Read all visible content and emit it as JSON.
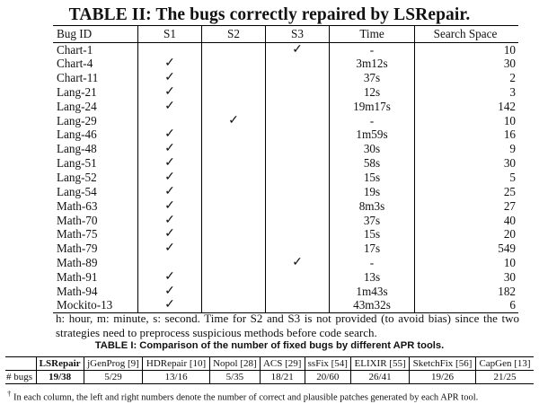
{
  "table2": {
    "caption": "TABLE II: The bugs correctly repaired by LSRepair.",
    "headers": [
      "Bug ID",
      "S1",
      "S2",
      "S3",
      "Time",
      "Search Space"
    ],
    "rows": [
      {
        "id": "Chart-1",
        "s1": "",
        "s2": "",
        "s3": "✓",
        "time": "-",
        "space": "10"
      },
      {
        "id": "Chart-4",
        "s1": "✓",
        "s2": "",
        "s3": "",
        "time": "3m12s",
        "space": "30"
      },
      {
        "id": "Chart-11",
        "s1": "✓",
        "s2": "",
        "s3": "",
        "time": "37s",
        "space": "2"
      },
      {
        "id": "Lang-21",
        "s1": "✓",
        "s2": "",
        "s3": "",
        "time": "12s",
        "space": "3"
      },
      {
        "id": "Lang-24",
        "s1": "✓",
        "s2": "",
        "s3": "",
        "time": "19m17s",
        "space": "142"
      },
      {
        "id": "Lang-29",
        "s1": "",
        "s2": "✓",
        "s3": "",
        "time": "-",
        "space": "10"
      },
      {
        "id": "Lang-46",
        "s1": "✓",
        "s2": "",
        "s3": "",
        "time": "1m59s",
        "space": "16"
      },
      {
        "id": "Lang-48",
        "s1": "✓",
        "s2": "",
        "s3": "",
        "time": "30s",
        "space": "9"
      },
      {
        "id": "Lang-51",
        "s1": "✓",
        "s2": "",
        "s3": "",
        "time": "58s",
        "space": "30"
      },
      {
        "id": "Lang-52",
        "s1": "✓",
        "s2": "",
        "s3": "",
        "time": "15s",
        "space": "5"
      },
      {
        "id": "Lang-54",
        "s1": "✓",
        "s2": "",
        "s3": "",
        "time": "19s",
        "space": "25"
      },
      {
        "id": "Math-63",
        "s1": "✓",
        "s2": "",
        "s3": "",
        "time": "8m3s",
        "space": "27"
      },
      {
        "id": "Math-70",
        "s1": "✓",
        "s2": "",
        "s3": "",
        "time": "37s",
        "space": "40"
      },
      {
        "id": "Math-75",
        "s1": "✓",
        "s2": "",
        "s3": "",
        "time": "15s",
        "space": "20"
      },
      {
        "id": "Math-79",
        "s1": "✓",
        "s2": "",
        "s3": "",
        "time": "17s",
        "space": "549"
      },
      {
        "id": "Math-89",
        "s1": "",
        "s2": "",
        "s3": "✓",
        "time": "-",
        "space": "10"
      },
      {
        "id": "Math-91",
        "s1": "✓",
        "s2": "",
        "s3": "",
        "time": "13s",
        "space": "30"
      },
      {
        "id": "Math-94",
        "s1": "✓",
        "s2": "",
        "s3": "",
        "time": "1m43s",
        "space": "182"
      },
      {
        "id": "Mockito-13",
        "s1": "✓",
        "s2": "",
        "s3": "",
        "time": "43m32s",
        "space": "6"
      }
    ]
  },
  "note": "h: hour, m: minute, s: second. Time for S2 and S3 is not provided (to avoid bias) since the two strategies need to preprocess suspicious methods before code search.",
  "table1": {
    "caption": "TABLE I: Comparison of the number of fixed bugs by different APR tools.",
    "headers": [
      "",
      "LSRepair",
      "jGenProg [9]",
      "HDRepair [10]",
      "Nopol [28]",
      "ACS [29]",
      "ssFix [54]",
      "ELIXIR [55]",
      "SketchFix [56]",
      "CapGen [13]"
    ],
    "row": [
      "# bugs",
      "19/38",
      "5/29",
      "13/16",
      "5/35",
      "18/21",
      "20/60",
      "26/41",
      "19/26",
      "21/25"
    ]
  },
  "footnote_mark": "†",
  "footnote": "In each column, the left and right numbers denote the number of correct and plausible patches generated by each APR tool."
}
